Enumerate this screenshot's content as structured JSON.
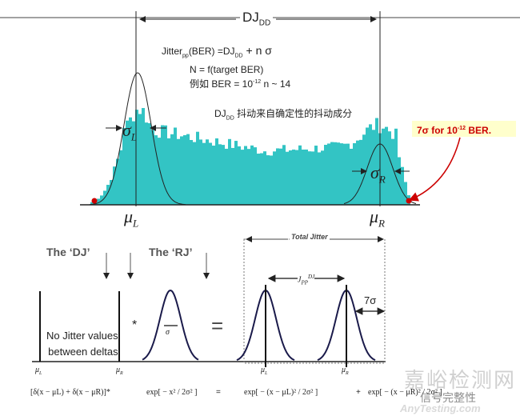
{
  "top": {
    "dj_label": "DJ",
    "dj_sub": "DD",
    "formula1_a": "Jitter",
    "formula1_sub": "pp",
    "formula1_b": "(BER) =DJ",
    "formula1_sub2": "DD",
    "formula1_c": " + n σ",
    "formula2": "N = f(target BER)",
    "formula3_a": "例如 BER = 10",
    "formula3_sup": "-12",
    "formula3_b": "  n ~ 14",
    "dj_desc_a": "DJ",
    "dj_desc_sub": "DD",
    "dj_desc_b": " 抖动来自确定性的抖动成分",
    "callout_a": "7σ for 10",
    "callout_sup": "-12",
    "callout_b": " BER.",
    "sigma_l": "σ",
    "sigma_l_sub": "L",
    "sigma_r": "σ",
    "sigma_r_sub": "R",
    "mu_l": "μ",
    "mu_l_sub": "L",
    "mu_r": "μ",
    "mu_r_sub": "R"
  },
  "bottom": {
    "dj_title": "The ‘DJ’",
    "rj_title": "The ‘RJ’",
    "no_jitter_1": "No Jitter values",
    "no_jitter_2": "between deltas",
    "convolve": "*",
    "equals": "=",
    "sigma": "σ",
    "total_jitter": "Total Jitter",
    "jpp": "J",
    "jpp_sub": "PP",
    "jpp_sup": "DJ",
    "seven_sigma": "7σ",
    "mu_l": "μ",
    "mu_l_sub": "L",
    "mu_r": "μ",
    "mu_r_sub": "R",
    "eq_left": "[δ(x − μL)   +   δ(x − μR)]*",
    "eq_rj": "exp[ − x² / 2σ² ]",
    "eq_eq": "=",
    "eq_right1": "exp[ − (x − μL)² / 2σ² ]",
    "eq_plus": "+",
    "eq_right2": "exp[ − (x − μR)² / 2σ² ]"
  },
  "watermark": {
    "site": "嘉峪检测网",
    "account": "信号完整性",
    "domain": "AnyTesting.com"
  },
  "colors": {
    "histogram": "#33c4c4",
    "callout_bg": "#ffffcc",
    "callout_text": "#cc0000",
    "curve": "#1a1a4a"
  }
}
